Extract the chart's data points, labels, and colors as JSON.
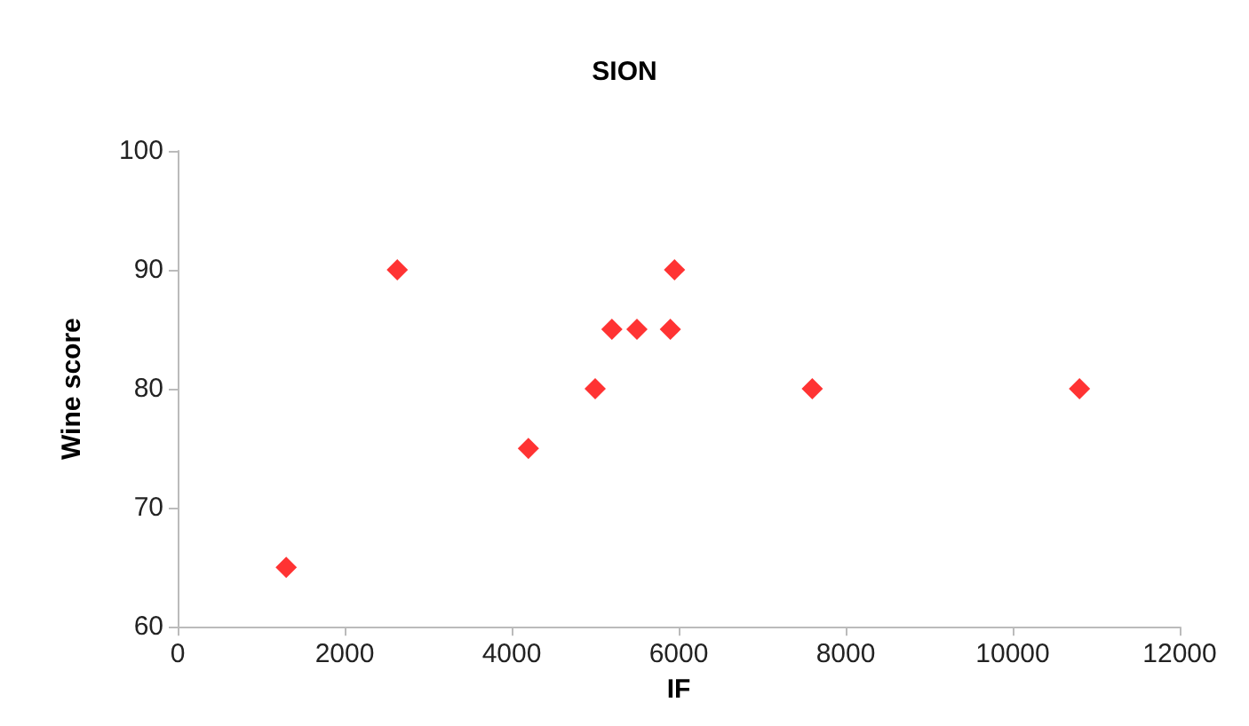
{
  "chart_data": {
    "type": "scatter",
    "title": "SION",
    "xlabel": "IF",
    "ylabel": "Wine score",
    "x": [
      1300,
      2630,
      4200,
      5000,
      5200,
      5500,
      5900,
      5950,
      7600,
      10800
    ],
    "series": [
      {
        "color": "#ff0000",
        "values": [
          65,
          90,
          75,
          80,
          85,
          85,
          85,
          90,
          80,
          80
        ]
      }
    ],
    "xlim": [
      0,
      12000
    ],
    "xticks": [
      0,
      2000,
      4000,
      6000,
      8000,
      10000,
      12000
    ],
    "ylim": [
      60,
      100
    ],
    "yticks": [
      60,
      70,
      80,
      90,
      100
    ],
    "grid": false,
    "marker": "diamond"
  }
}
